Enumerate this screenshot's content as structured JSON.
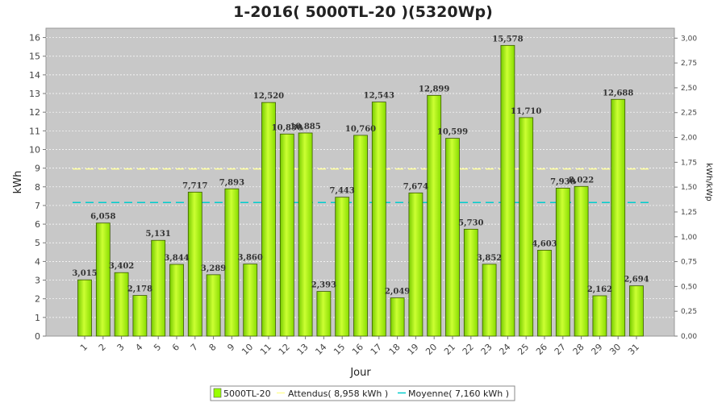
{
  "chart_data": {
    "type": "bar",
    "title": "1-2016( 5000TL-20 )(5320Wp)",
    "xlabel": "Jour",
    "ylabel": "kWh",
    "ylabel_right": "kWh/kWp",
    "ylim": [
      0,
      16.5
    ],
    "ylim_right": [
      0,
      3.1
    ],
    "yticks": [
      "0",
      "1",
      "2",
      "3",
      "4",
      "5",
      "6",
      "7",
      "8",
      "9",
      "10",
      "11",
      "12",
      "13",
      "14",
      "15",
      "16"
    ],
    "yticks_right": [
      "0,00",
      "0,25",
      "0,50",
      "0,75",
      "1,00",
      "1,25",
      "1,50",
      "1,75",
      "2,00",
      "2,25",
      "2,50",
      "2,75",
      "3,00"
    ],
    "categories": [
      "1",
      "2",
      "3",
      "4",
      "5",
      "6",
      "7",
      "8",
      "9",
      "10",
      "11",
      "12",
      "13",
      "14",
      "15",
      "16",
      "17",
      "18",
      "19",
      "20",
      "21",
      "22",
      "23",
      "24",
      "25",
      "26",
      "27",
      "28",
      "29",
      "30",
      "31"
    ],
    "series": [
      {
        "name": "5000TL-20",
        "color": "#99ff00",
        "values": [
          3.015,
          6.058,
          3.402,
          2.178,
          5.131,
          3.844,
          7.717,
          3.289,
          7.893,
          3.86,
          12.52,
          10.83,
          10.885,
          2.393,
          7.443,
          10.76,
          12.543,
          2.049,
          7.674,
          12.899,
          10.599,
          5.73,
          3.852,
          15.578,
          11.71,
          4.603,
          7.93,
          8.022,
          2.162,
          12.688,
          2.694
        ],
        "labels": [
          "3,015",
          "6,058",
          "3,402",
          "2,178",
          "5,131",
          "3,844",
          "7,717",
          "3,289",
          "7,893",
          "3,860",
          "12,520",
          "10,830",
          "10,885",
          "2,393",
          "7,443",
          "10,760",
          "12,543",
          "2,049",
          "7,674",
          "12,899",
          "10,599",
          "5,730",
          "3,852",
          "15,578",
          "11,710",
          "4,603",
          "7,930",
          "8,022",
          "2,162",
          "12,688",
          "2,694"
        ]
      }
    ],
    "reference_lines": [
      {
        "name": "Attendus( 8,958 kWh )",
        "value": 8.958,
        "color": "#ffff99",
        "style": "dashed"
      },
      {
        "name": "Moyenne( 7,160 kWh )",
        "value": 7.16,
        "color": "#00cccc",
        "style": "dashed"
      }
    ],
    "grid": true,
    "legend_position": "bottom",
    "plot_background": "#c8c8c8"
  }
}
